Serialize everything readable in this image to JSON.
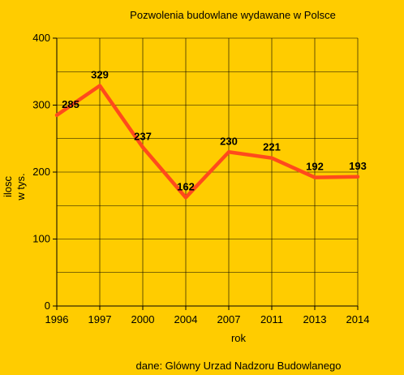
{
  "chart_data": {
    "type": "line",
    "title": "Pozwolenia budowlane wydawane w Polsce",
    "xlabel": "rok",
    "ylabel_lines": [
      "ilosc",
      "w tys."
    ],
    "source_note": "dane: Glówny Urzad Nadzoru Budowlanego",
    "categories": [
      "1996",
      "1997",
      "2000",
      "2004",
      "2007",
      "2011",
      "2013",
      "2014"
    ],
    "series": [
      {
        "values": [
          285,
          329,
          237,
          162,
          230,
          221,
          192,
          193
        ]
      }
    ],
    "data_labels": [
      "285",
      "329",
      "237",
      "162",
      "230",
      "221",
      "192",
      "193"
    ],
    "ylim": [
      0,
      400
    ],
    "yticks": [
      "0",
      "100",
      "200",
      "300",
      "400"
    ],
    "grid": true,
    "colors": {
      "background": "#FFCC00",
      "line": "#FF4A1C",
      "grid": "#000000"
    }
  }
}
